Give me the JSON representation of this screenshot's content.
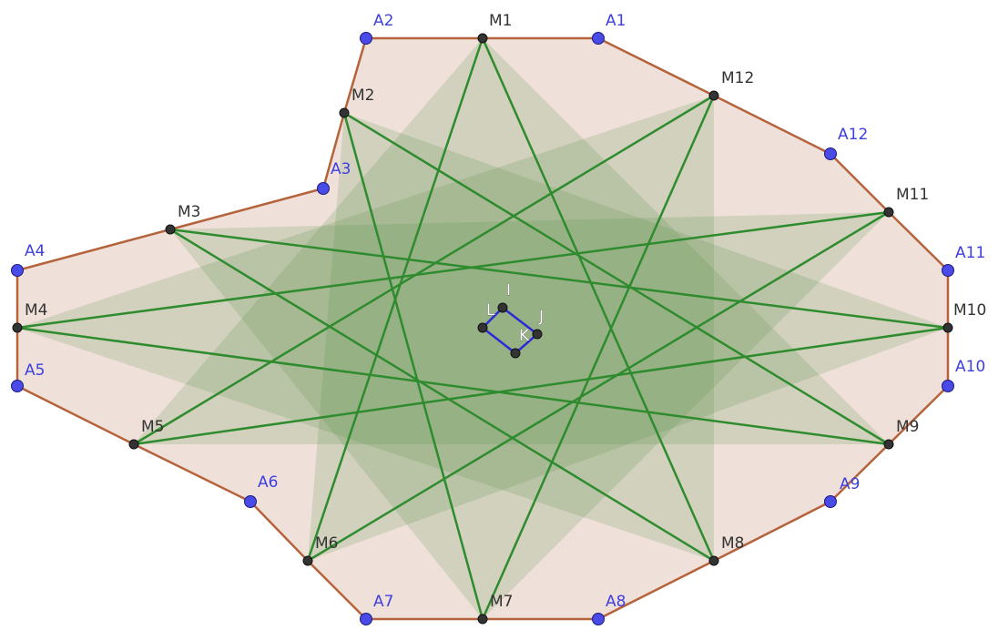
{
  "colors": {
    "outer_fill": "#efe1da",
    "outer_stroke": "#b5633c",
    "star_fill": "#5a8f4a",
    "star_stroke": "#2e8b2e",
    "quad_stroke": "#2b2bd6",
    "point_black": "#333333",
    "point_blue": "#4a4ae6"
  },
  "outer_polygon_order": [
    "A1",
    "M12",
    "A12",
    "M11",
    "A11",
    "M10",
    "A10",
    "M9",
    "A9",
    "M8",
    "A8",
    "M7",
    "A7",
    "M6",
    "A6",
    "M5",
    "A5",
    "M4",
    "A4",
    "M3",
    "A3",
    "M2",
    "A2",
    "M1"
  ],
  "star_edges": [
    [
      "M1",
      "M8"
    ],
    [
      "M8",
      "M3"
    ],
    [
      "M3",
      "M10"
    ],
    [
      "M10",
      "M5"
    ],
    [
      "M5",
      "M12"
    ],
    [
      "M12",
      "M7"
    ],
    [
      "M7",
      "M2"
    ],
    [
      "M2",
      "M9"
    ],
    [
      "M9",
      "M4"
    ],
    [
      "M4",
      "M11"
    ],
    [
      "M11",
      "M6"
    ],
    [
      "M6",
      "M1"
    ]
  ],
  "quad_order": [
    "I",
    "J",
    "K",
    "L"
  ],
  "points": [
    {
      "name": "A1",
      "type": "blue"
    },
    {
      "name": "A2",
      "type": "blue"
    },
    {
      "name": "A3",
      "type": "blue"
    },
    {
      "name": "A4",
      "type": "blue"
    },
    {
      "name": "A5",
      "type": "blue"
    },
    {
      "name": "A6",
      "type": "blue"
    },
    {
      "name": "A7",
      "type": "blue"
    },
    {
      "name": "A8",
      "type": "blue"
    },
    {
      "name": "A9",
      "type": "blue"
    },
    {
      "name": "A10",
      "type": "blue"
    },
    {
      "name": "A11",
      "type": "blue"
    },
    {
      "name": "A12",
      "type": "blue"
    },
    {
      "name": "M1",
      "type": "black"
    },
    {
      "name": "M2",
      "type": "black"
    },
    {
      "name": "M3",
      "type": "black"
    },
    {
      "name": "M4",
      "type": "black"
    },
    {
      "name": "M5",
      "type": "black"
    },
    {
      "name": "M6",
      "type": "black"
    },
    {
      "name": "M7",
      "type": "black"
    },
    {
      "name": "M8",
      "type": "black"
    },
    {
      "name": "M9",
      "type": "black"
    },
    {
      "name": "M10",
      "type": "black"
    },
    {
      "name": "M11",
      "type": "black"
    },
    {
      "name": "M12",
      "type": "black"
    },
    {
      "name": "I",
      "type": "white"
    },
    {
      "name": "J",
      "type": "white"
    },
    {
      "name": "K",
      "type": "white"
    },
    {
      "name": "L",
      "type": "white"
    }
  ]
}
